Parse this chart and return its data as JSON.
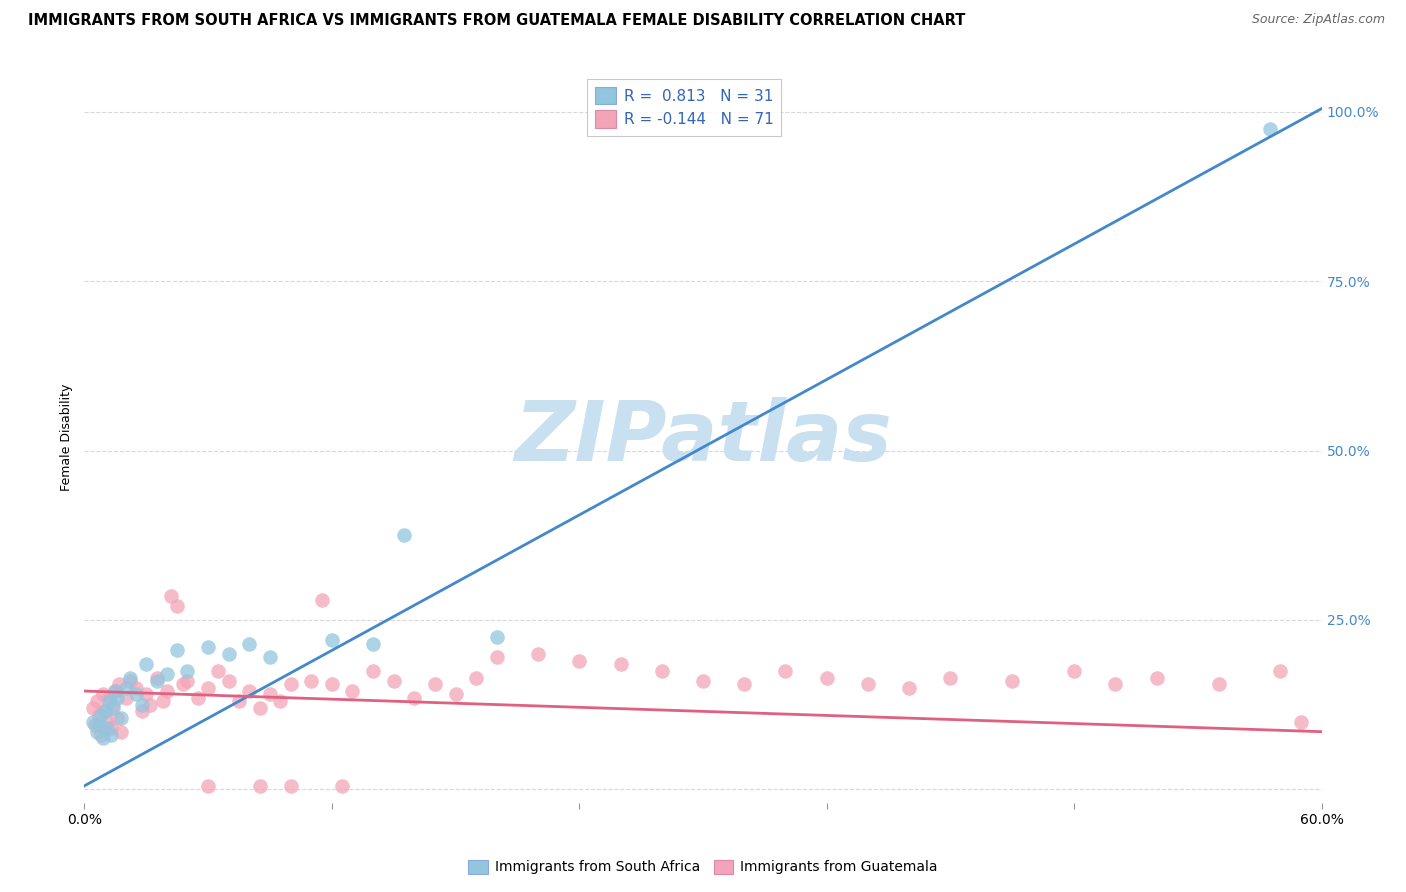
{
  "title": "IMMIGRANTS FROM SOUTH AFRICA VS IMMIGRANTS FROM GUATEMALA FEMALE DISABILITY CORRELATION CHART",
  "source": "Source: ZipAtlas.com",
  "ylabel": "Female Disability",
  "color_sa": "#92c5de",
  "color_gt": "#f4a4b8",
  "color_sa_line": "#4488cc",
  "color_gt_line": "#e06080",
  "watermark": "ZIPatlas",
  "watermark_color": "#c8e0f0",
  "watermark_fontsize": 60,
  "xlim": [
    0.0,
    0.6
  ],
  "ylim": [
    -0.02,
    1.06
  ],
  "ytick_vals": [
    0.0,
    0.25,
    0.5,
    0.75,
    1.0
  ],
  "ytick_labels": [
    "",
    "25.0%",
    "50.0%",
    "75.0%",
    "100.0%"
  ],
  "xtick_positions": [
    0.0,
    0.12,
    0.24,
    0.36,
    0.48,
    0.6
  ],
  "xtick_labels": [
    "0.0%",
    "",
    "",
    "",
    "",
    "60.0%"
  ],
  "sa_line_x": [
    0.0,
    0.6
  ],
  "sa_line_y": [
    0.005,
    1.005
  ],
  "gt_line_x": [
    0.0,
    0.6
  ],
  "gt_line_y": [
    0.145,
    0.085
  ],
  "grid_color": "#d8d8d8",
  "bg_color": "#ffffff",
  "title_fontsize": 10.5,
  "source_fontsize": 9,
  "tick_fontsize": 10,
  "ylabel_fontsize": 9,
  "legend1_labels": [
    "R =  0.813   N = 31",
    "R = -0.144   N = 71"
  ],
  "legend2_labels": [
    "Immigrants from South Africa",
    "Immigrants from Guatemala"
  ],
  "sa_x": [
    0.004,
    0.006,
    0.007,
    0.008,
    0.009,
    0.01,
    0.011,
    0.012,
    0.013,
    0.014,
    0.015,
    0.016,
    0.018,
    0.02,
    0.022,
    0.025,
    0.028,
    0.03,
    0.035,
    0.04,
    0.045,
    0.05,
    0.06,
    0.07,
    0.08,
    0.09,
    0.12,
    0.14,
    0.155,
    0.2,
    0.575
  ],
  "sa_y": [
    0.1,
    0.085,
    0.095,
    0.11,
    0.075,
    0.115,
    0.09,
    0.13,
    0.08,
    0.12,
    0.145,
    0.135,
    0.105,
    0.15,
    0.165,
    0.14,
    0.125,
    0.185,
    0.16,
    0.17,
    0.205,
    0.175,
    0.21,
    0.2,
    0.215,
    0.195,
    0.22,
    0.215,
    0.375,
    0.225,
    0.975
  ],
  "gt_x": [
    0.004,
    0.005,
    0.006,
    0.007,
    0.008,
    0.009,
    0.01,
    0.011,
    0.012,
    0.013,
    0.014,
    0.015,
    0.016,
    0.017,
    0.018,
    0.02,
    0.022,
    0.025,
    0.028,
    0.03,
    0.032,
    0.035,
    0.038,
    0.04,
    0.042,
    0.045,
    0.048,
    0.05,
    0.055,
    0.06,
    0.065,
    0.07,
    0.075,
    0.08,
    0.085,
    0.09,
    0.095,
    0.1,
    0.11,
    0.12,
    0.13,
    0.14,
    0.15,
    0.16,
    0.17,
    0.18,
    0.19,
    0.2,
    0.22,
    0.24,
    0.26,
    0.28,
    0.3,
    0.32,
    0.34,
    0.36,
    0.38,
    0.4,
    0.42,
    0.45,
    0.48,
    0.5,
    0.52,
    0.55,
    0.58,
    0.59,
    0.1,
    0.125,
    0.115,
    0.085,
    0.06
  ],
  "gt_y": [
    0.12,
    0.095,
    0.13,
    0.11,
    0.08,
    0.14,
    0.115,
    0.1,
    0.135,
    0.09,
    0.125,
    0.145,
    0.105,
    0.155,
    0.085,
    0.135,
    0.16,
    0.15,
    0.115,
    0.14,
    0.125,
    0.165,
    0.13,
    0.145,
    0.285,
    0.27,
    0.155,
    0.16,
    0.135,
    0.15,
    0.175,
    0.16,
    0.13,
    0.145,
    0.12,
    0.14,
    0.13,
    0.155,
    0.16,
    0.155,
    0.145,
    0.175,
    0.16,
    0.135,
    0.155,
    0.14,
    0.165,
    0.195,
    0.2,
    0.19,
    0.185,
    0.175,
    0.16,
    0.155,
    0.175,
    0.165,
    0.155,
    0.15,
    0.165,
    0.16,
    0.175,
    0.155,
    0.165,
    0.155,
    0.175,
    0.1,
    0.005,
    0.005,
    0.28,
    0.005,
    0.005
  ]
}
